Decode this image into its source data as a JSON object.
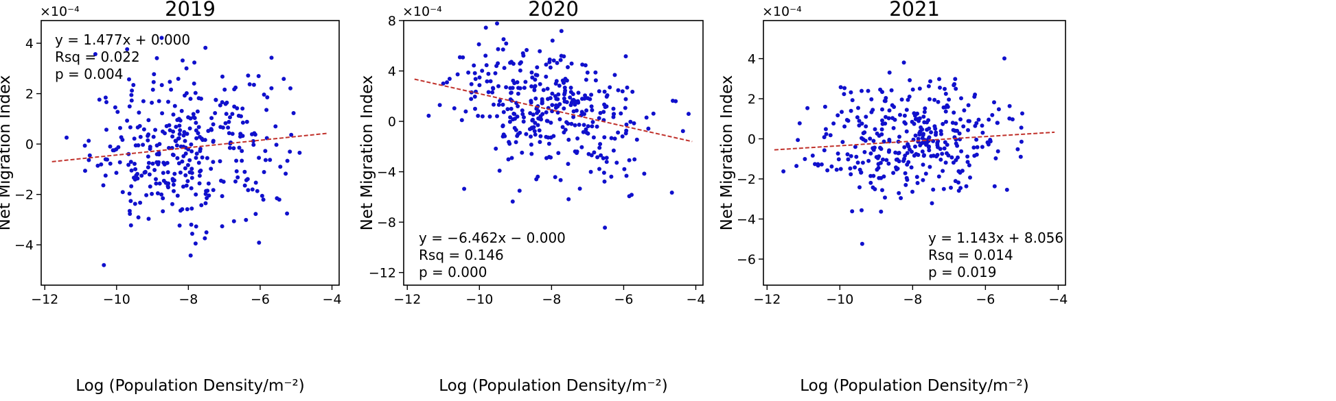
{
  "chart_data": [
    {
      "type": "scatter",
      "title": "2019",
      "xlabel": "Log (Population Density/m⁻²)",
      "ylabel": "Net Migration Index",
      "multiplier": "×10⁻⁴",
      "xlim": [
        -12.1,
        -3.8
      ],
      "ylim": [
        -5.6,
        4.9
      ],
      "xticks": [
        -12,
        -10,
        -8,
        -6,
        -4
      ],
      "xtick_labels": [
        "−12",
        "−10",
        "−8",
        "−6",
        "−4"
      ],
      "yticks": [
        -4,
        -2,
        0,
        2,
        4
      ],
      "ytick_labels": [
        "−4",
        "−2",
        "0",
        "2",
        "4"
      ],
      "fit": {
        "x": [
          -11.8,
          -4.1
        ],
        "y": [
          -0.7,
          0.43
        ]
      },
      "stats": [
        "y = 1.477x + 0.000",
        "Rsq = 0.022",
        "p = 0.004"
      ],
      "stats_position": "top-left",
      "grid": false
    },
    {
      "type": "scatter",
      "title": "2020",
      "xlabel": "Log (Population Density/m⁻²)",
      "ylabel": "Net Migration Index",
      "multiplier": "×10⁻⁴",
      "xlim": [
        -12.1,
        -3.8
      ],
      "ylim": [
        -13.0,
        8.0
      ],
      "xticks": [
        -12,
        -10,
        -8,
        -6,
        -4
      ],
      "xtick_labels": [
        "−12",
        "−10",
        "−8",
        "−6",
        "−4"
      ],
      "yticks": [
        -12,
        -8,
        -4,
        0,
        4,
        8
      ],
      "ytick_labels": [
        "−12",
        "−8",
        "−4",
        "0",
        "4",
        "8"
      ],
      "fit": {
        "x": [
          -11.8,
          -4.1
        ],
        "y": [
          3.35,
          -1.6
        ]
      },
      "stats": [
        "y = −6.462x − 0.000",
        "Rsq = 0.146",
        "p = 0.000"
      ],
      "stats_position": "bottom-left",
      "grid": false
    },
    {
      "type": "scatter",
      "title": "2021",
      "xlabel": "Log (Population Density/m⁻²)",
      "ylabel": "Net Migration Index",
      "multiplier": "×10⁻⁴",
      "xlim": [
        -12.1,
        -3.8
      ],
      "ylim": [
        -7.3,
        5.9
      ],
      "xticks": [
        -12,
        -10,
        -8,
        -6,
        -4
      ],
      "xtick_labels": [
        "−12",
        "−10",
        "−8",
        "−6",
        "−4"
      ],
      "yticks": [
        -6,
        -4,
        -2,
        0,
        2,
        4
      ],
      "ytick_labels": [
        "−6",
        "−4",
        "−2",
        "0",
        "2",
        "4"
      ],
      "fit": {
        "x": [
          -11.8,
          -4.1
        ],
        "y": [
          -0.55,
          0.33
        ]
      },
      "stats": [
        "y = 1.143x + 8.056",
        "Rsq = 0.014",
        "p = 0.019"
      ],
      "stats_position": "bottom-right",
      "grid": false
    }
  ]
}
